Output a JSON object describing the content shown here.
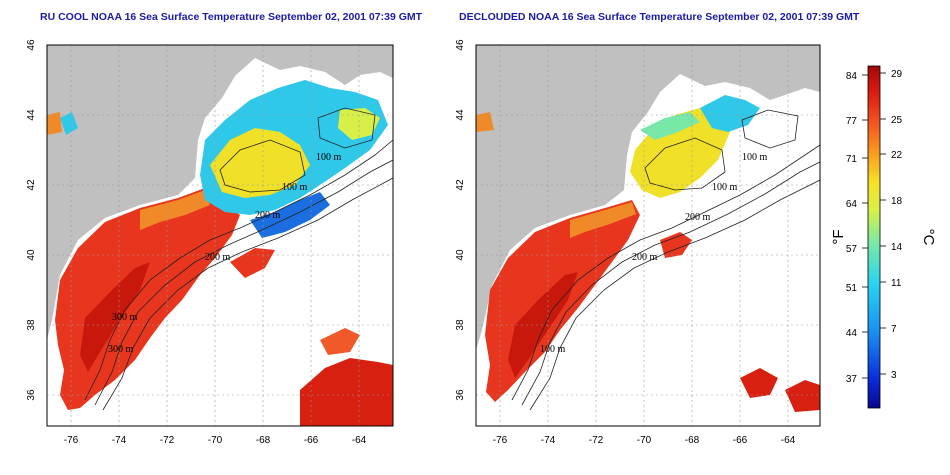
{
  "maps": [
    {
      "title": "RU COOL NOAA 16 Sea Surface Temperature September 02, 2001 07:39 GMT",
      "contour_labels": [
        "100 m",
        "100 m",
        "200 m",
        "200 m",
        "300 m",
        "300 m",
        "100 m"
      ]
    },
    {
      "title": "DECLOUDED NOAA 16 Sea Surface Temperature September 02, 2001 07:39 GMT",
      "contour_labels": [
        "100 m",
        "100 m",
        "200 m",
        "200 m",
        "100 m"
      ]
    }
  ],
  "lon_ticks": [
    "-76",
    "-74",
    "-72",
    "-70",
    "-68",
    "-66",
    "-64"
  ],
  "lat_ticks": [
    "46",
    "44",
    "42",
    "40",
    "38",
    "36"
  ],
  "colorbar": {
    "fahrenheit_ticks": [
      "84",
      "77",
      "71",
      "64",
      "57",
      "51",
      "44",
      "37"
    ],
    "celsius_ticks": [
      "29",
      "25",
      "22",
      "18",
      "14",
      "11",
      "7",
      "3"
    ],
    "fahrenheit_unit": "°F",
    "celsius_unit": "°C"
  },
  "colors": {
    "land": "#c0c0c0",
    "cloud": "#ffffff",
    "warm": "#e8351f",
    "hot": "#c8180c",
    "mid": "#f0e028",
    "cool": "#2fc7e8",
    "cold": "#1c52d8",
    "title": "#1a1aa6"
  }
}
